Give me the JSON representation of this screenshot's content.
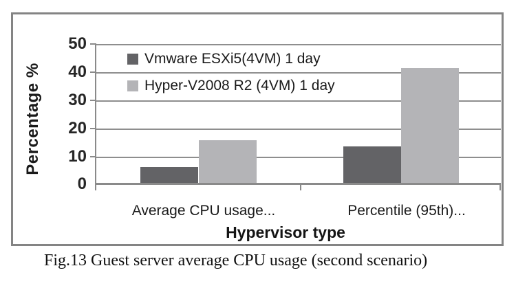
{
  "figure": {
    "caption": "Fig.13 Guest server average CPU usage (second scenario)"
  },
  "chart_data": {
    "type": "bar",
    "title": "",
    "categories": [
      "Average CPU usage...",
      "Percentile (95th)..."
    ],
    "series": [
      {
        "name": "Vmware ESXi5(4VM) 1 day",
        "color": "#636366",
        "values": [
          6.2,
          13.5
        ]
      },
      {
        "name": "Hyper-V2008 R2 (4VM) 1 day",
        "color": "#b4b4b7",
        "values": [
          15.8,
          41.5
        ]
      }
    ],
    "xlabel": "Hypervisor type",
    "ylabel": "Percentage %",
    "ylim": [
      0,
      50
    ],
    "ytick_interval": 10,
    "yticks": [
      "50",
      "40",
      "30",
      "20",
      "10",
      "0"
    ],
    "grid": "horizontal",
    "legend_position": "top-left-inside",
    "colors": {
      "gridline": "#8e8e8e",
      "axis": "#8a8a8a",
      "frame": "#848484"
    }
  }
}
